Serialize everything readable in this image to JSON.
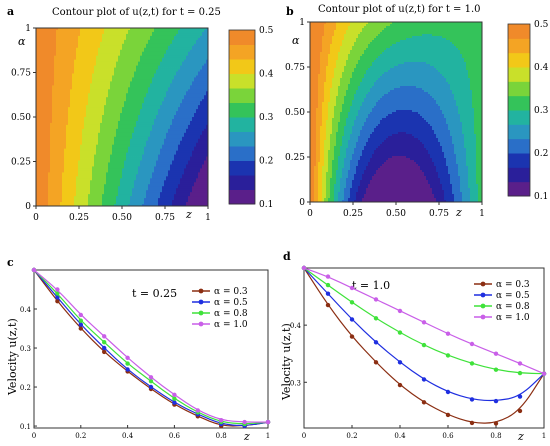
{
  "colors": {
    "contour_scale": [
      "#5a1f8a",
      "#2a1f9a",
      "#1b34b0",
      "#2a6fc8",
      "#2a96c0",
      "#22b3a0",
      "#34c35a",
      "#7ad43a",
      "#c9e02a",
      "#f2c818",
      "#f4a424",
      "#f08a2a"
    ],
    "alpha_03": "#8b2e12",
    "alpha_05": "#1f2fe0",
    "alpha_08": "#3fe23a",
    "alpha_10": "#c95fe8"
  },
  "chart_data": [
    {
      "panel": "a",
      "type": "heatmap",
      "title": "Contour plot of u(z,t) for t = 0.25",
      "xlabel": "z",
      "ylabel": "α",
      "xticks": [
        "0",
        "0.25",
        "0.50",
        "0.75",
        "1"
      ],
      "yticks": [
        "0",
        "0.25",
        "0.50",
        "0.75",
        "1"
      ],
      "xlim": [
        0,
        1
      ],
      "ylim": [
        0,
        1
      ],
      "colorbar_ticks": [
        "0.1",
        "0.2",
        "0.3",
        "0.4",
        "0.5"
      ],
      "colorbar_range": [
        0.1,
        0.5
      ]
    },
    {
      "panel": "b",
      "type": "heatmap",
      "title": "Contour plot of u(z,t) for t = 1.0",
      "xlabel": "z",
      "ylabel": "α",
      "xticks": [
        "0",
        "0.25",
        "0.50",
        "0.75",
        "1"
      ],
      "yticks": [
        "0",
        "0.25",
        "0.50",
        "0.75",
        "1"
      ],
      "xlim": [
        0,
        1
      ],
      "ylim": [
        0,
        1
      ],
      "colorbar_ticks": [
        "0.1",
        "0.2",
        "0.3",
        "0.4",
        "0.5"
      ],
      "colorbar_range": [
        0.1,
        0.5
      ]
    },
    {
      "panel": "c",
      "type": "line",
      "annotation": "t = 0.25",
      "xlabel": "z",
      "ylabel": "Velocity u(z,t)",
      "xlim": [
        0,
        1
      ],
      "ylim": [
        0.095,
        0.5
      ],
      "xticks": [
        "0",
        "0.2",
        "0.4",
        "0.6",
        "0.8",
        "1"
      ],
      "yticks": [
        "0.1",
        "0.2",
        "0.3",
        "0.4"
      ],
      "x": [
        0,
        0.1,
        0.2,
        0.3,
        0.4,
        0.5,
        0.6,
        0.7,
        0.8,
        0.9,
        1.0
      ],
      "series": [
        {
          "name": "α = 0.3",
          "values": [
            0.5,
            0.42,
            0.35,
            0.29,
            0.24,
            0.195,
            0.155,
            0.125,
            0.1,
            0.1,
            0.11
          ]
        },
        {
          "name": "α = 0.5",
          "values": [
            0.5,
            0.43,
            0.36,
            0.3,
            0.245,
            0.2,
            0.16,
            0.13,
            0.105,
            0.1,
            0.11
          ]
        },
        {
          "name": "α = 0.8",
          "values": [
            0.5,
            0.44,
            0.37,
            0.315,
            0.26,
            0.215,
            0.17,
            0.135,
            0.11,
            0.105,
            0.11
          ]
        },
        {
          "name": "α = 1.0",
          "values": [
            0.5,
            0.45,
            0.385,
            0.33,
            0.275,
            0.225,
            0.18,
            0.14,
            0.115,
            0.11,
            0.11
          ]
        }
      ],
      "legend": "top-right"
    },
    {
      "panel": "d",
      "type": "line",
      "annotation": "t = 1.0",
      "xlabel": "z",
      "ylabel": "Velocity u(z,t)",
      "xlim": [
        0,
        1
      ],
      "ylim": [
        0.22,
        0.5
      ],
      "xticks": [
        "0",
        "0.2",
        "0.4",
        "0.6",
        "0.8",
        "1"
      ],
      "yticks": [
        "0.3",
        "0.4"
      ],
      "x": [
        0,
        0.1,
        0.2,
        0.3,
        0.4,
        0.5,
        0.6,
        0.7,
        0.8,
        0.9,
        1.0
      ],
      "series": [
        {
          "name": "α = 0.3",
          "values": [
            0.5,
            0.435,
            0.38,
            0.335,
            0.295,
            0.265,
            0.243,
            0.229,
            0.228,
            0.25,
            0.315
          ]
        },
        {
          "name": "α = 0.5",
          "values": [
            0.5,
            0.455,
            0.41,
            0.37,
            0.335,
            0.305,
            0.283,
            0.27,
            0.267,
            0.275,
            0.315
          ]
        },
        {
          "name": "α = 0.8",
          "values": [
            0.5,
            0.47,
            0.44,
            0.412,
            0.387,
            0.365,
            0.347,
            0.333,
            0.322,
            0.316,
            0.315
          ]
        },
        {
          "name": "α = 1.0",
          "values": [
            0.5,
            0.485,
            0.465,
            0.445,
            0.425,
            0.405,
            0.385,
            0.367,
            0.35,
            0.333,
            0.315
          ]
        }
      ],
      "legend": "top-right"
    }
  ]
}
